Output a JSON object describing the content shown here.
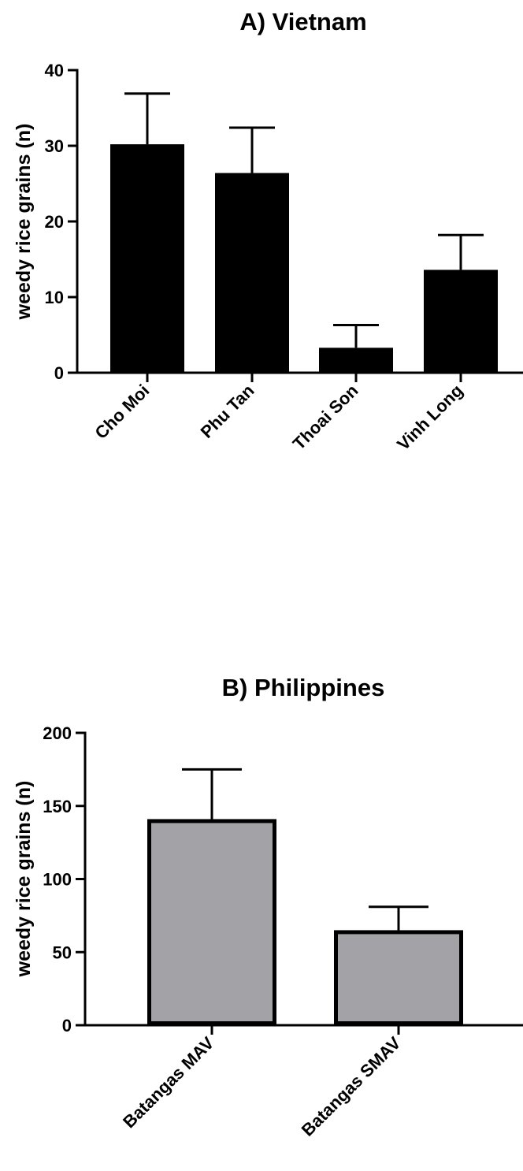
{
  "chart_data": [
    {
      "type": "bar",
      "title": "A) Vietnam",
      "xlabel": "",
      "ylabel": "weedy rice grains (n)",
      "ylim": [
        0,
        40
      ],
      "yticks": [
        0,
        10,
        20,
        30,
        40
      ],
      "categories": [
        "Cho Moi",
        "Phu Tan",
        "Thoai Son",
        "Vinh Long"
      ],
      "values": [
        30.2,
        26.4,
        3.3,
        13.6
      ],
      "error_upper": [
        36.9,
        32.4,
        6.3,
        18.2
      ],
      "bar_color": "#000000",
      "grid": false
    },
    {
      "type": "bar",
      "title": "B) Philippines",
      "xlabel": "",
      "ylabel": "weedy rice grains (n)",
      "ylim": [
        0,
        200
      ],
      "yticks": [
        0,
        50,
        100,
        150,
        200
      ],
      "categories": [
        "Batangas MAV",
        "Batangas SMAV"
      ],
      "values": [
        141,
        65
      ],
      "error_upper": [
        175,
        81
      ],
      "bar_color": "#a3a2a7",
      "grid": false
    }
  ]
}
